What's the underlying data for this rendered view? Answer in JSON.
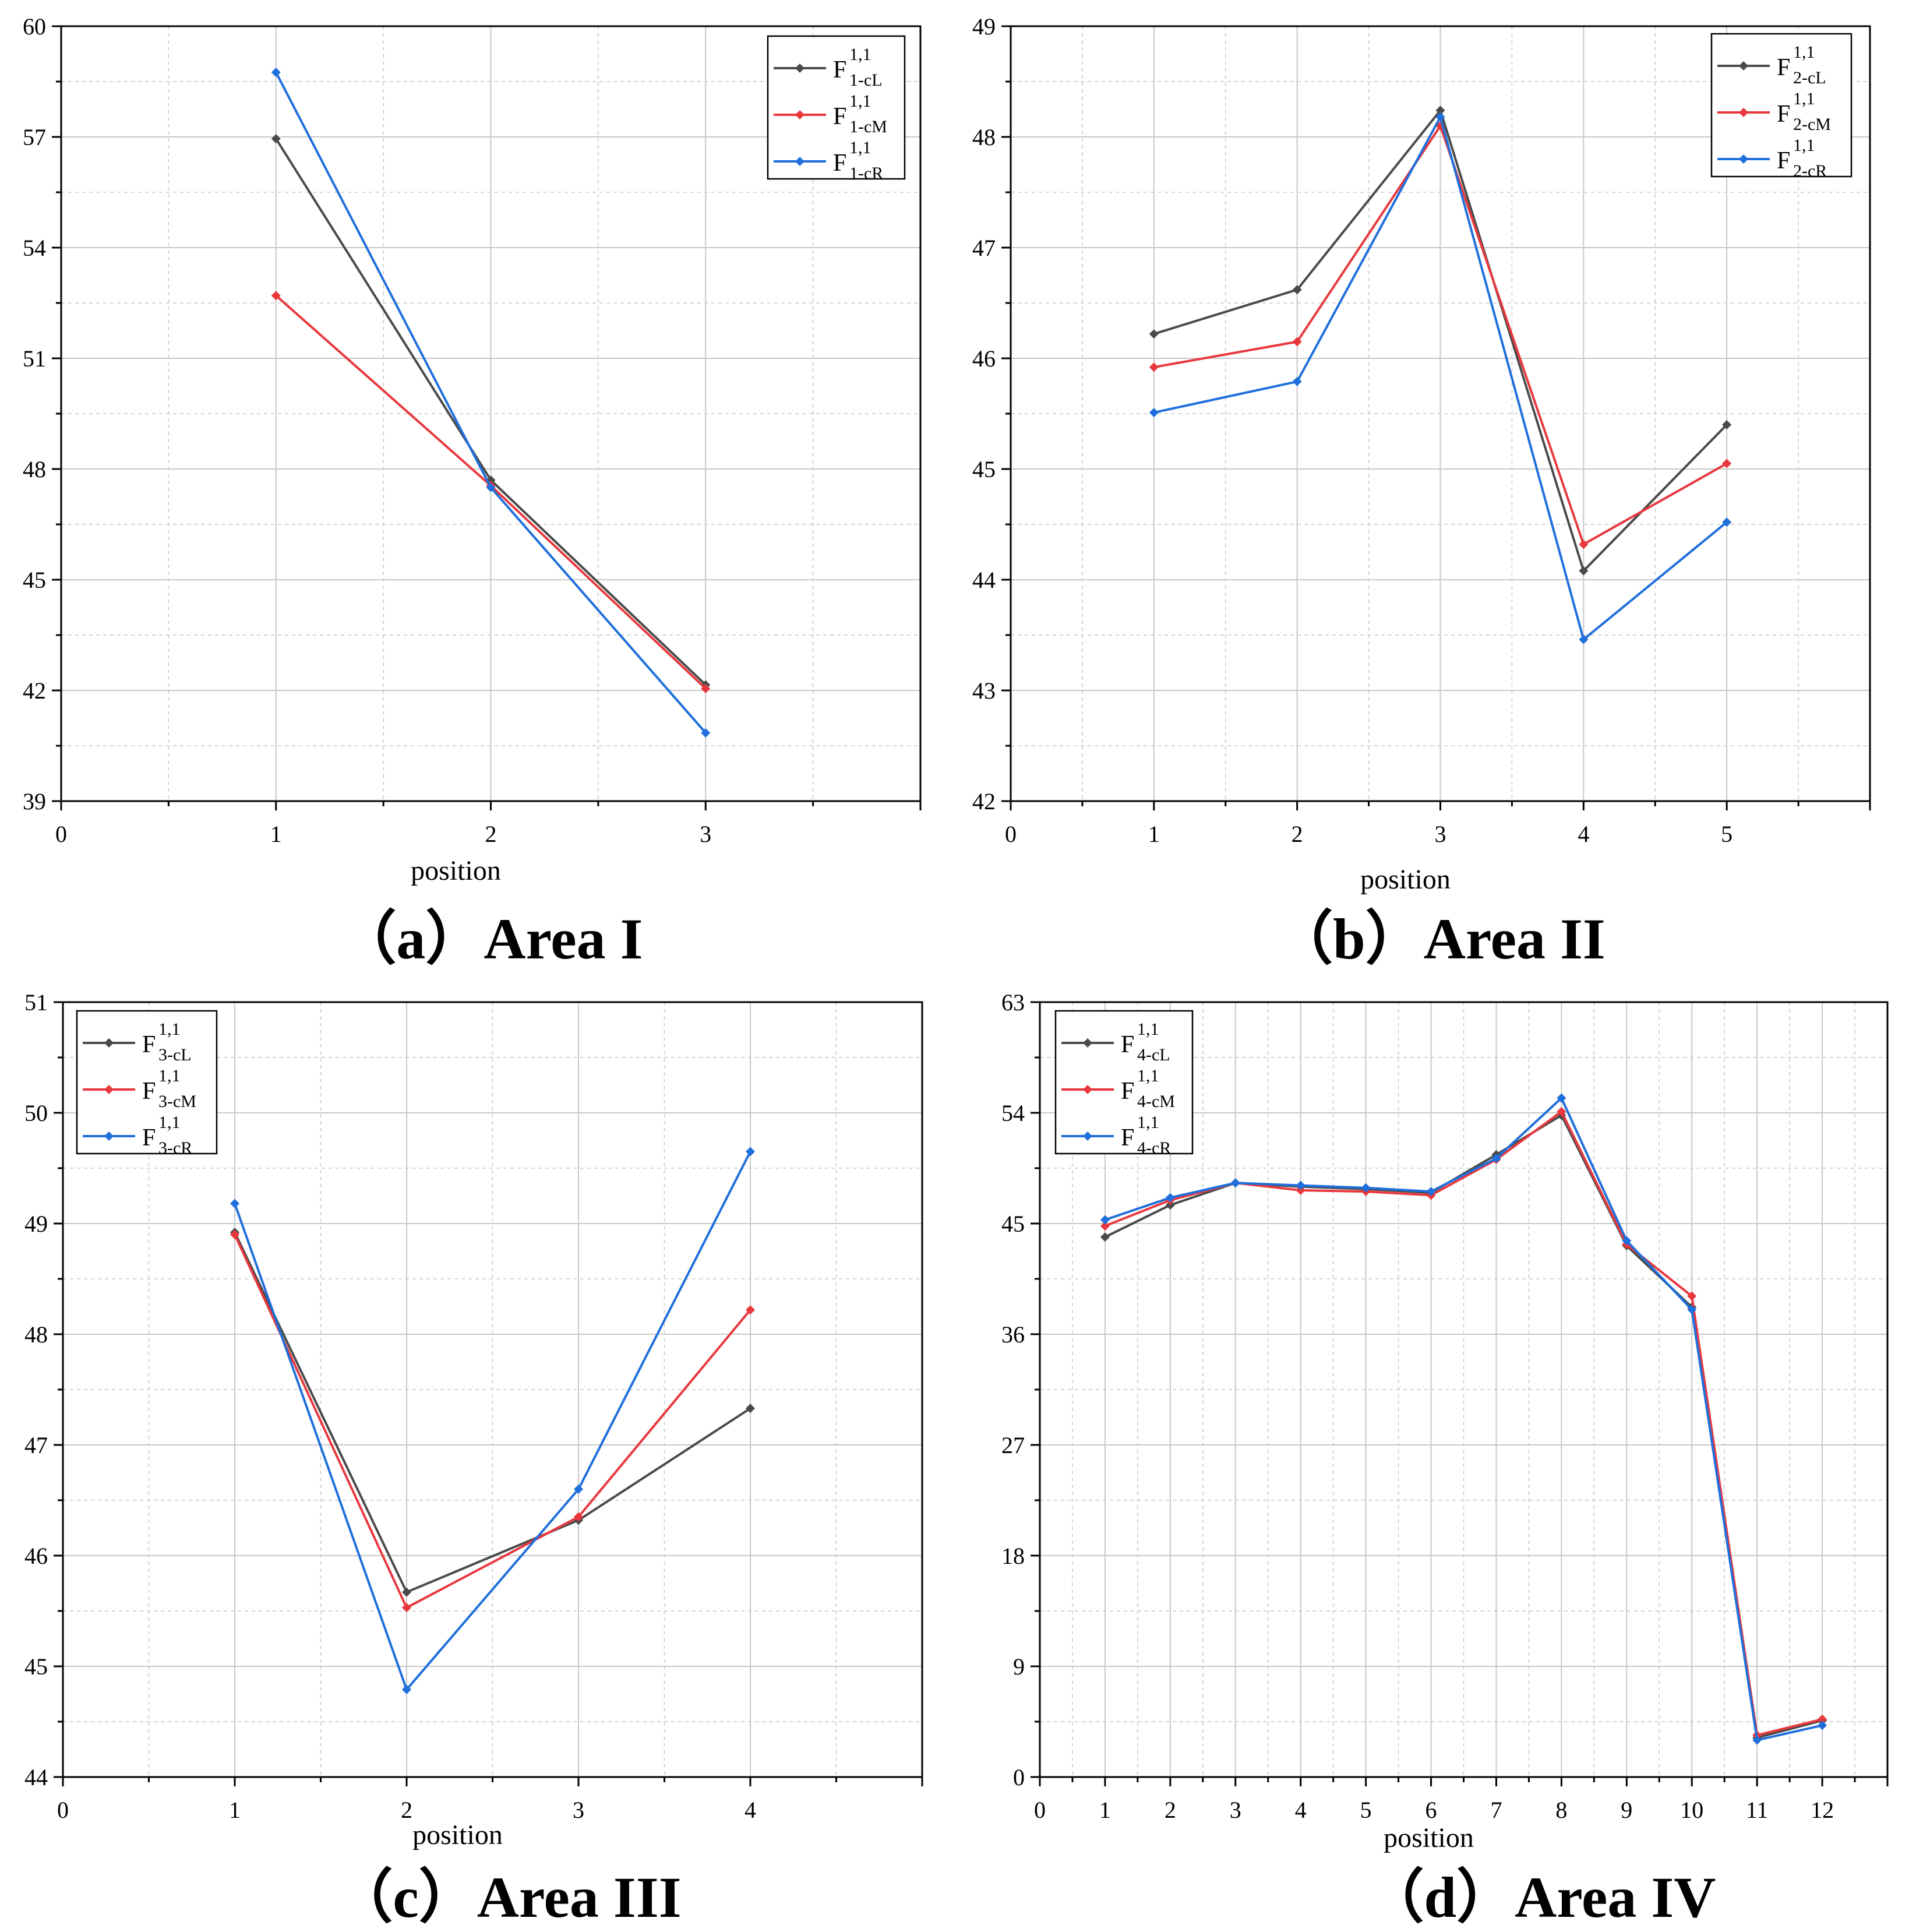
{
  "colors": {
    "cL": "#4a4a4a",
    "cM": "#e8383d",
    "cR": "#1f6fdc",
    "grid": "#c8c8c8",
    "axis": "#000000"
  },
  "chart_data": [
    {
      "type": "line",
      "panel_label": "（a）Area I",
      "xlabel": "position",
      "xlim": [
        0,
        4
      ],
      "x_ticks": [
        0,
        1,
        2,
        3
      ],
      "ylim": [
        39,
        60
      ],
      "y_ticks": [
        39,
        42,
        45,
        48,
        51,
        54,
        57,
        60
      ],
      "grid": true,
      "legend_placement": "top-right",
      "x": [
        1,
        2,
        3
      ],
      "series": [
        {
          "key": "cL",
          "name_main": "F",
          "name_sup": "1,1",
          "name_sub": "1-cL",
          "values": [
            56.95,
            47.7,
            42.15
          ]
        },
        {
          "key": "cM",
          "name_main": "F",
          "name_sup": "1,1",
          "name_sub": "1-cM",
          "values": [
            52.7,
            47.55,
            42.05
          ]
        },
        {
          "key": "cR",
          "name_main": "F",
          "name_sup": "1,1",
          "name_sub": "1-cR",
          "values": [
            58.75,
            47.5,
            40.85
          ]
        }
      ]
    },
    {
      "type": "line",
      "panel_label": "（b）Area II",
      "xlabel": "position",
      "xlim": [
        0,
        6
      ],
      "x_ticks": [
        0,
        1,
        2,
        3,
        4,
        5
      ],
      "ylim": [
        42,
        49
      ],
      "y_ticks": [
        42,
        43,
        44,
        45,
        46,
        47,
        48,
        49
      ],
      "grid": true,
      "legend_placement": "top-right",
      "x": [
        1,
        2,
        3,
        4,
        5
      ],
      "series": [
        {
          "key": "cL",
          "name_main": "F",
          "name_sup": "1,1",
          "name_sub": "2-cL",
          "values": [
            46.22,
            46.62,
            48.24,
            44.08,
            45.4
          ]
        },
        {
          "key": "cM",
          "name_main": "F",
          "name_sup": "1,1",
          "name_sub": "2-cM",
          "values": [
            45.92,
            46.15,
            48.1,
            44.32,
            45.05
          ]
        },
        {
          "key": "cR",
          "name_main": "F",
          "name_sup": "1,1",
          "name_sub": "2-cR",
          "values": [
            45.51,
            45.79,
            48.18,
            43.46,
            44.52
          ]
        }
      ]
    },
    {
      "type": "line",
      "panel_label": "（c）Area III",
      "xlabel": "position",
      "xlim": [
        0,
        5
      ],
      "x_ticks": [
        0,
        1,
        2,
        3,
        4
      ],
      "ylim": [
        44,
        51
      ],
      "y_ticks": [
        44,
        45,
        46,
        47,
        48,
        49,
        50,
        51
      ],
      "grid": true,
      "legend_placement": "top-left",
      "x": [
        1,
        2,
        3,
        4
      ],
      "series": [
        {
          "key": "cL",
          "name_main": "F",
          "name_sup": "1,1",
          "name_sub": "3-cL",
          "values": [
            48.92,
            45.67,
            46.32,
            47.33
          ]
        },
        {
          "key": "cM",
          "name_main": "F",
          "name_sup": "1,1",
          "name_sub": "3-cM",
          "values": [
            48.9,
            45.53,
            46.35,
            48.22
          ]
        },
        {
          "key": "cR",
          "name_main": "F",
          "name_sup": "1,1",
          "name_sub": "3-cR",
          "values": [
            49.18,
            44.79,
            46.6,
            49.65
          ]
        }
      ]
    },
    {
      "type": "line",
      "panel_label": "（d）Area IV",
      "xlabel": "position",
      "xlim": [
        0,
        13
      ],
      "x_ticks": [
        0,
        1,
        2,
        3,
        4,
        5,
        6,
        7,
        8,
        9,
        10,
        11,
        12
      ],
      "ylim": [
        0,
        63
      ],
      "y_ticks": [
        0,
        9,
        18,
        27,
        36,
        45,
        54,
        63
      ],
      "grid": true,
      "legend_placement": "top-left",
      "x": [
        1,
        2,
        3,
        4,
        5,
        6,
        7,
        8,
        9,
        10,
        11,
        12
      ],
      "series": [
        {
          "key": "cL",
          "name_main": "F",
          "name_sup": "1,1",
          "name_sub": "4-cL",
          "values": [
            43.9,
            46.5,
            48.3,
            48.0,
            47.8,
            47.5,
            50.6,
            53.8,
            43.2,
            38.2,
            3.2,
            4.6
          ]
        },
        {
          "key": "cM",
          "name_main": "F",
          "name_sup": "1,1",
          "name_sub": "4-cM",
          "values": [
            44.8,
            46.9,
            48.3,
            47.7,
            47.6,
            47.3,
            50.2,
            54.1,
            43.3,
            39.1,
            3.4,
            4.7
          ]
        },
        {
          "key": "cR",
          "name_main": "F",
          "name_sup": "1,1",
          "name_sub": "4-cR",
          "values": [
            45.3,
            47.1,
            48.3,
            48.1,
            47.9,
            47.6,
            50.3,
            55.2,
            43.6,
            38.0,
            3.0,
            4.2
          ]
        }
      ]
    }
  ]
}
